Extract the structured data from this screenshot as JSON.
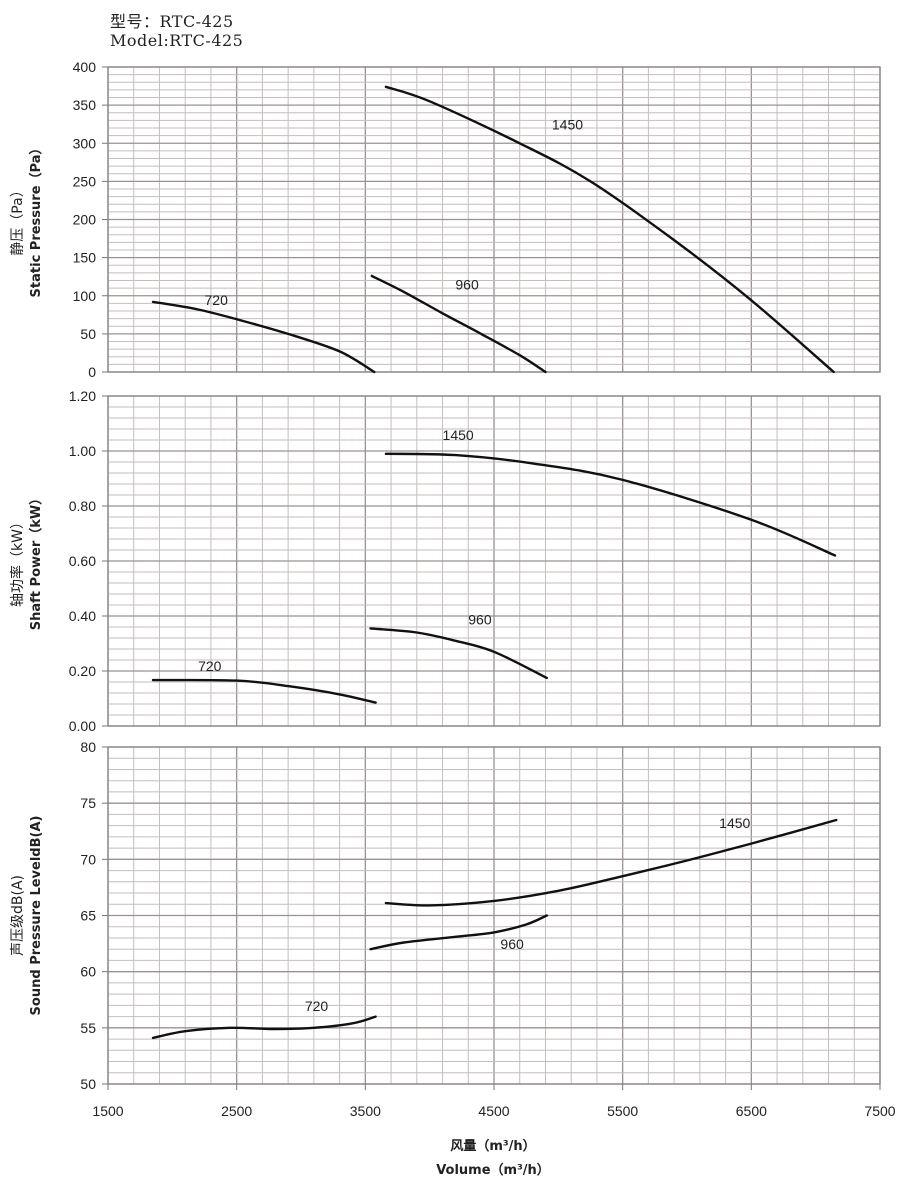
{
  "header": {
    "model_cn": "型号：RTC-425",
    "model_en": "Model:RTC-425"
  },
  "x_axis": {
    "label_cn": "风量（m³/h）",
    "label_en": "Volume（m³/h）",
    "min": 1500,
    "max": 7500,
    "ticks": [
      "1500",
      "2500",
      "3500",
      "4500",
      "5500",
      "6500",
      "7500"
    ]
  },
  "chart_data": [
    {
      "type": "line",
      "title": "Static Pressure",
      "ylabel_cn": "静压（Pa）",
      "ylabel_en": "Static Pressure（Pa）",
      "xlabel": "Volume（m³/h）",
      "ylim": [
        0,
        400
      ],
      "y_major_step": 50,
      "y_minor_step": 10,
      "y_ticks": [
        "0",
        "50",
        "100",
        "150",
        "200",
        "250",
        "300",
        "350",
        "400"
      ],
      "grid": true,
      "series": [
        {
          "name": "720",
          "label_at": [
            2250,
            88
          ],
          "x": [
            1850,
            2200,
            2525,
            2900,
            3300,
            3570
          ],
          "y": [
            92,
            82,
            68,
            50,
            27,
            0
          ]
        },
        {
          "name": "960",
          "label_at": [
            4200,
            108
          ],
          "x": [
            3550,
            3800,
            4100,
            4400,
            4700,
            4900
          ],
          "y": [
            126,
            105,
            77,
            50,
            22,
            0
          ]
        },
        {
          "name": "1450",
          "label_at": [
            4950,
            318
          ],
          "x": [
            3660,
            4000,
            4700,
            5250,
            5900,
            6500,
            7140
          ],
          "y": [
            374,
            355,
            300,
            250,
            173,
            94,
            0
          ]
        }
      ]
    },
    {
      "type": "line",
      "title": "Shaft Power",
      "ylabel_cn": "轴功率（kW）",
      "ylabel_en": "Shaft Power（kW）",
      "xlabel": "Volume（m³/h）",
      "ylim": [
        0,
        1.2
      ],
      "y_major_step": 0.2,
      "y_minor_step": 0.04,
      "y_ticks": [
        "0.00",
        "0.20",
        "0.40",
        "0.60",
        "0.80",
        "1.00",
        "1.20"
      ],
      "grid": true,
      "series": [
        {
          "name": "720",
          "label_at": [
            2200,
            0.2
          ],
          "x": [
            1850,
            2500,
            2900,
            3300,
            3580
          ],
          "y": [
            0.167,
            0.165,
            0.145,
            0.115,
            0.085
          ]
        },
        {
          "name": "960",
          "label_at": [
            4300,
            0.37
          ],
          "x": [
            3540,
            3900,
            4200,
            4500,
            4910
          ],
          "y": [
            0.355,
            0.34,
            0.31,
            0.27,
            0.175
          ]
        },
        {
          "name": "1450",
          "label_at": [
            4100,
            1.04
          ],
          "x": [
            3660,
            4200,
            4800,
            5500,
            6500,
            7150
          ],
          "y": [
            0.99,
            0.985,
            0.955,
            0.895,
            0.75,
            0.62
          ]
        }
      ]
    },
    {
      "type": "line",
      "title": "Sound Pressure Level",
      "ylabel_cn": "声压级dB(A)",
      "ylabel_en": "Sound Pressure LeveldB(A)",
      "xlabel": "Volume（m³/h）",
      "ylim": [
        50,
        80
      ],
      "y_major_step": 5,
      "y_minor_step": 1,
      "y_ticks": [
        "50",
        "55",
        "60",
        "65",
        "70",
        "75",
        "80"
      ],
      "grid": true,
      "series": [
        {
          "name": "720",
          "label_at": [
            3030,
            56.5
          ],
          "x": [
            1850,
            2100,
            2450,
            2800,
            3100,
            3400,
            3580
          ],
          "y": [
            54.1,
            54.7,
            55.0,
            54.9,
            55.0,
            55.4,
            56.0
          ]
        },
        {
          "name": "960",
          "label_at": [
            4550,
            62.0
          ],
          "x": [
            3540,
            3800,
            4200,
            4500,
            4750,
            4910
          ],
          "y": [
            62.0,
            62.6,
            63.1,
            63.5,
            64.2,
            65.0
          ]
        },
        {
          "name": "1450",
          "label_at": [
            6250,
            72.8
          ],
          "x": [
            3660,
            4000,
            4500,
            5000,
            5500,
            6000,
            6500,
            7160
          ],
          "y": [
            66.1,
            65.9,
            66.3,
            67.2,
            68.5,
            69.9,
            71.4,
            73.5
          ]
        }
      ]
    }
  ]
}
